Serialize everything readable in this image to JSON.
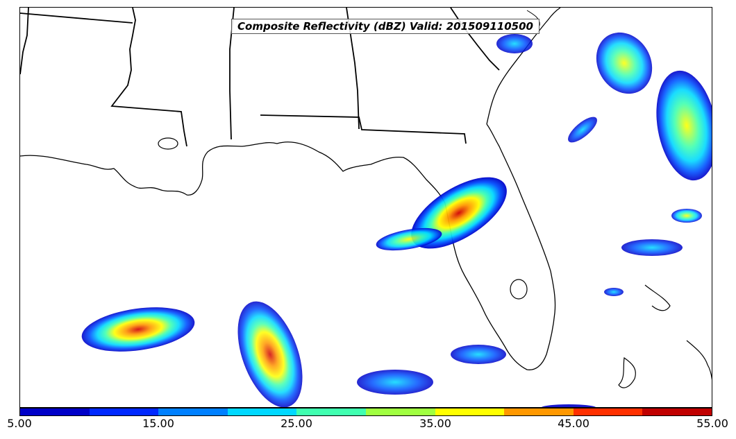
{
  "title": "Composite Reflectivity (dBZ) Valid: 201509110500",
  "colorbar": {
    "ticks": [
      "5.00",
      "15.00",
      "25.00",
      "35.00",
      "45.00",
      "55.00"
    ],
    "colors": [
      "#0000c8",
      "#0028ff",
      "#0080ff",
      "#00d8ff",
      "#40ffb0",
      "#a0ff40",
      "#ffff00",
      "#ff9800",
      "#ff3000",
      "#c00000"
    ]
  },
  "map": {
    "line_color": "#000000",
    "background": "#ffffff"
  }
}
